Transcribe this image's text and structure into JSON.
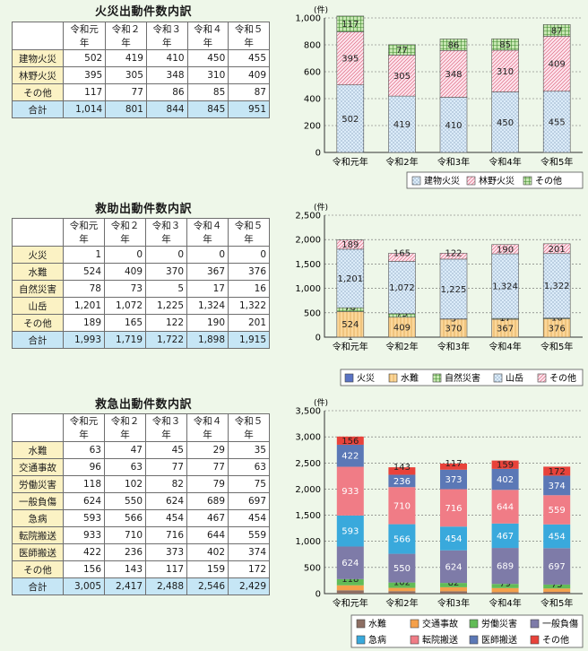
{
  "sections": [
    {
      "title": "火災出動件数内訳",
      "table": {
        "headers": [
          "",
          "令和元年",
          "令和２年",
          "令和３年",
          "令和４年",
          "令和５年"
        ],
        "rows": [
          {
            "label": "建物火災",
            "values": [
              "502",
              "419",
              "410",
              "450",
              "455"
            ]
          },
          {
            "label": "林野火災",
            "values": [
              "395",
              "305",
              "348",
              "310",
              "409"
            ]
          },
          {
            "label": "その他",
            "values": [
              "117",
              "77",
              "86",
              "85",
              "87"
            ]
          },
          {
            "label": "合計",
            "values": [
              "1,014",
              "801",
              "844",
              "845",
              "951"
            ],
            "total": true
          }
        ]
      }
    },
    {
      "title": "救助出動件数内訳",
      "table": {
        "headers": [
          "",
          "令和元年",
          "令和２年",
          "令和３年",
          "令和４年",
          "令和５年"
        ],
        "rows": [
          {
            "label": "火災",
            "values": [
              "1",
              "0",
              "0",
              "0",
              "0"
            ]
          },
          {
            "label": "水難",
            "values": [
              "524",
              "409",
              "370",
              "367",
              "376"
            ]
          },
          {
            "label": "自然災害",
            "values": [
              "78",
              "73",
              "5",
              "17",
              "16"
            ]
          },
          {
            "label": "山岳",
            "values": [
              "1,201",
              "1,072",
              "1,225",
              "1,324",
              "1,322"
            ]
          },
          {
            "label": "その他",
            "values": [
              "189",
              "165",
              "122",
              "190",
              "201"
            ]
          },
          {
            "label": "合計",
            "values": [
              "1,993",
              "1,719",
              "1,722",
              "1,898",
              "1,915"
            ],
            "total": true
          }
        ]
      }
    },
    {
      "title": "救急出動件数内訳",
      "table": {
        "headers": [
          "",
          "令和元年",
          "令和２年",
          "令和３年",
          "令和４年",
          "令和５年"
        ],
        "rows": [
          {
            "label": "水難",
            "values": [
              "63",
              "47",
              "45",
              "29",
              "35"
            ]
          },
          {
            "label": "交通事故",
            "values": [
              "96",
              "63",
              "77",
              "77",
              "63"
            ]
          },
          {
            "label": "労働災害",
            "values": [
              "118",
              "102",
              "82",
              "79",
              "75"
            ]
          },
          {
            "label": "一般負傷",
            "values": [
              "624",
              "550",
              "624",
              "689",
              "697"
            ]
          },
          {
            "label": "急病",
            "values": [
              "593",
              "566",
              "454",
              "467",
              "454"
            ]
          },
          {
            "label": "転院搬送",
            "values": [
              "933",
              "710",
              "716",
              "644",
              "559"
            ]
          },
          {
            "label": "医師搬送",
            "values": [
              "422",
              "236",
              "373",
              "402",
              "374"
            ]
          },
          {
            "label": "その他",
            "values": [
              "156",
              "143",
              "117",
              "159",
              "172"
            ]
          },
          {
            "label": "合計",
            "values": [
              "3,005",
              "2,417",
              "2,488",
              "2,546",
              "2,429"
            ],
            "total": true
          }
        ]
      }
    }
  ],
  "chart_data": [
    {
      "type": "bar",
      "stacked": true,
      "unit": "(件)",
      "ylim": [
        0,
        1000
      ],
      "yticks": [
        "0",
        "200",
        "400",
        "600",
        "800",
        "1,000"
      ],
      "categories": [
        "令和元年",
        "令和2年",
        "令和3年",
        "令和4年",
        "令和5年"
      ],
      "legend_position": "bottom-right",
      "series": [
        {
          "name": "建物火災",
          "values": [
            502,
            419,
            410,
            450,
            455
          ],
          "color": "#dcecf9",
          "pattern": "dots"
        },
        {
          "name": "林野火災",
          "values": [
            395,
            305,
            348,
            310,
            409
          ],
          "color": "#fde3ec",
          "pattern": "diag"
        },
        {
          "name": "その他",
          "values": [
            117,
            77,
            86,
            85,
            87
          ],
          "color": "#c7e7b2",
          "pattern": "grid"
        }
      ]
    },
    {
      "type": "bar",
      "stacked": true,
      "unit": "(件)",
      "ylim": [
        0,
        2500
      ],
      "yticks": [
        "0",
        "500",
        "1,000",
        "1,500",
        "2,000",
        "2,500"
      ],
      "categories": [
        "令和元年",
        "令和2年",
        "令和3年",
        "令和4年",
        "令和5年"
      ],
      "legend_position": "bottom-right",
      "series": [
        {
          "name": "火災",
          "values": [
            1,
            0,
            0,
            0,
            0
          ],
          "color": "#5a73c4",
          "pattern": "solid"
        },
        {
          "name": "水難",
          "values": [
            524,
            409,
            370,
            367,
            376
          ],
          "color": "#fbd79a",
          "pattern": "vlines"
        },
        {
          "name": "自然災害",
          "values": [
            78,
            73,
            5,
            17,
            16
          ],
          "color": "#c7e7b2",
          "pattern": "grid"
        },
        {
          "name": "山岳",
          "values": [
            1201,
            1072,
            1225,
            1324,
            1322
          ],
          "color": "#dcecf9",
          "pattern": "dots"
        },
        {
          "name": "その他",
          "values": [
            189,
            165,
            122,
            190,
            201
          ],
          "color": "#fde3ec",
          "pattern": "diag"
        }
      ]
    },
    {
      "type": "bar",
      "stacked": true,
      "unit": "(件)",
      "ylim": [
        0,
        3500
      ],
      "yticks": [
        "0",
        "500",
        "1,000",
        "1,500",
        "2,000",
        "2,500",
        "3,000",
        "3,500"
      ],
      "categories": [
        "令和元年",
        "令和2年",
        "令和3年",
        "令和4年",
        "令和5年"
      ],
      "legend_position": "bottom",
      "series": [
        {
          "name": "水難",
          "values": [
            63,
            47,
            45,
            29,
            35
          ],
          "color": "#8d6e63",
          "pattern": "solid"
        },
        {
          "name": "交通事故",
          "values": [
            96,
            63,
            77,
            77,
            63
          ],
          "color": "#f5a04a",
          "pattern": "solid"
        },
        {
          "name": "労働災害",
          "values": [
            118,
            102,
            82,
            79,
            75
          ],
          "color": "#62bb57",
          "pattern": "solid"
        },
        {
          "name": "一般負傷",
          "values": [
            624,
            550,
            624,
            689,
            697
          ],
          "color": "#7e7ba8",
          "pattern": "solid"
        },
        {
          "name": "急病",
          "values": [
            593,
            566,
            454,
            467,
            454
          ],
          "color": "#39a9dc",
          "pattern": "solid"
        },
        {
          "name": "転院搬送",
          "values": [
            933,
            710,
            716,
            644,
            559
          ],
          "color": "#f07c86",
          "pattern": "solid"
        },
        {
          "name": "医師搬送",
          "values": [
            422,
            236,
            373,
            402,
            374
          ],
          "color": "#5b78b6",
          "pattern": "solid"
        },
        {
          "name": "その他",
          "values": [
            156,
            143,
            117,
            159,
            172
          ],
          "color": "#e8423a",
          "pattern": "solid"
        }
      ]
    }
  ]
}
